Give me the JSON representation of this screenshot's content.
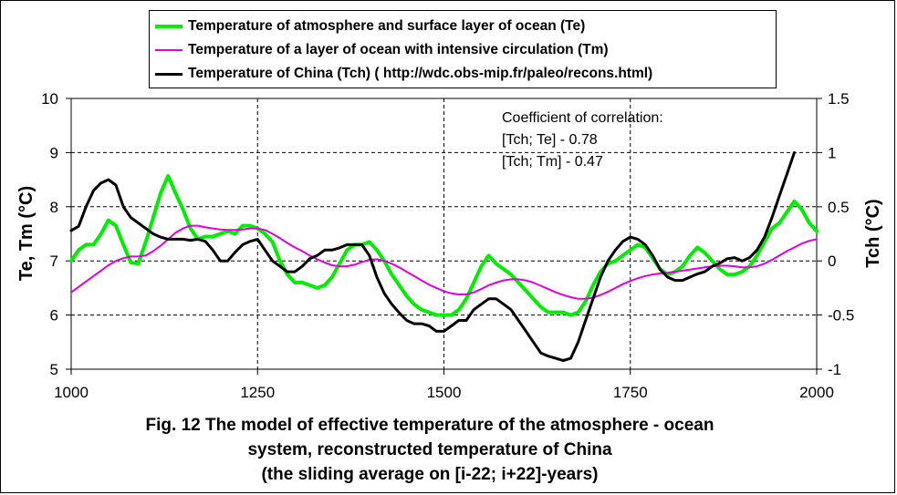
{
  "chart_data": {
    "type": "line",
    "xlabel": "",
    "ylabel": "Te, Tm (°C)",
    "y2label": "Tch (°C)",
    "xlim": [
      1000,
      2000
    ],
    "xticks": [
      "1000",
      "1250",
      "1500",
      "1750",
      "2000"
    ],
    "ylim": [
      5,
      10
    ],
    "yticks": [
      "5",
      "6",
      "7",
      "8",
      "9",
      "10"
    ],
    "y2lim": [
      -1,
      1.5
    ],
    "y2ticks": [
      "-1",
      "-0.5",
      "0",
      "0.5",
      "1",
      "1.5"
    ],
    "grid": "dashed vertical lines at x ticks, dashed horizontal lines at y ticks",
    "legend_position": "top",
    "series": [
      {
        "name": "Temperature of atmosphere and surface layer of ocean (Te)",
        "color": "#00ee00",
        "axis": "left",
        "x": [
          1000,
          1010,
          1020,
          1030,
          1040,
          1050,
          1060,
          1070,
          1080,
          1090,
          1100,
          1110,
          1120,
          1130,
          1140,
          1150,
          1160,
          1170,
          1180,
          1190,
          1200,
          1210,
          1220,
          1230,
          1240,
          1250,
          1260,
          1270,
          1280,
          1290,
          1300,
          1310,
          1320,
          1330,
          1340,
          1350,
          1360,
          1370,
          1380,
          1390,
          1400,
          1410,
          1420,
          1430,
          1440,
          1450,
          1460,
          1470,
          1480,
          1490,
          1500,
          1510,
          1520,
          1530,
          1540,
          1550,
          1560,
          1570,
          1580,
          1590,
          1600,
          1610,
          1620,
          1630,
          1640,
          1650,
          1660,
          1670,
          1680,
          1690,
          1700,
          1710,
          1720,
          1730,
          1740,
          1750,
          1760,
          1770,
          1780,
          1790,
          1800,
          1810,
          1820,
          1830,
          1840,
          1850,
          1860,
          1870,
          1880,
          1890,
          1900,
          1910,
          1920,
          1930,
          1940,
          1950,
          1960,
          1970,
          1980,
          1990,
          2000
        ],
        "values": [
          7.0,
          7.2,
          7.3,
          7.3,
          7.5,
          7.75,
          7.65,
          7.3,
          6.97,
          6.95,
          7.35,
          7.8,
          8.25,
          8.57,
          8.25,
          7.95,
          7.6,
          7.4,
          7.45,
          7.45,
          7.5,
          7.55,
          7.5,
          7.65,
          7.65,
          7.6,
          7.5,
          7.35,
          7.0,
          6.75,
          6.6,
          6.6,
          6.55,
          6.5,
          6.55,
          6.7,
          6.95,
          7.2,
          7.3,
          7.3,
          7.35,
          7.2,
          7.0,
          6.75,
          6.55,
          6.35,
          6.2,
          6.1,
          6.05,
          6.0,
          6.0,
          6.0,
          6.1,
          6.3,
          6.6,
          6.9,
          7.1,
          6.95,
          6.85,
          6.75,
          6.6,
          6.45,
          6.3,
          6.15,
          6.05,
          6.05,
          6.05,
          6.0,
          6.05,
          6.25,
          6.55,
          6.8,
          6.95,
          7.0,
          7.1,
          7.2,
          7.3,
          7.25,
          7.05,
          6.85,
          6.75,
          6.8,
          6.9,
          7.1,
          7.25,
          7.15,
          7.0,
          6.85,
          6.75,
          6.75,
          6.8,
          6.9,
          7.1,
          7.35,
          7.6,
          7.7,
          7.9,
          8.1,
          7.95,
          7.7,
          7.55
        ]
      },
      {
        "name": "Temperature of a layer of ocean with intensive circulation (Tm)",
        "color": "#e000e0",
        "axis": "left",
        "x": [
          1000,
          1010,
          1020,
          1030,
          1040,
          1050,
          1060,
          1070,
          1080,
          1090,
          1100,
          1110,
          1120,
          1130,
          1140,
          1150,
          1160,
          1170,
          1180,
          1190,
          1200,
          1210,
          1220,
          1230,
          1240,
          1250,
          1260,
          1270,
          1280,
          1290,
          1300,
          1310,
          1320,
          1330,
          1340,
          1350,
          1360,
          1370,
          1380,
          1390,
          1400,
          1410,
          1420,
          1430,
          1440,
          1450,
          1460,
          1470,
          1480,
          1490,
          1500,
          1510,
          1520,
          1530,
          1540,
          1550,
          1560,
          1570,
          1580,
          1590,
          1600,
          1610,
          1620,
          1630,
          1640,
          1650,
          1660,
          1670,
          1680,
          1690,
          1700,
          1710,
          1720,
          1730,
          1740,
          1750,
          1760,
          1770,
          1780,
          1790,
          1800,
          1810,
          1820,
          1830,
          1840,
          1850,
          1860,
          1870,
          1880,
          1890,
          1900,
          1910,
          1920,
          1930,
          1940,
          1950,
          1960,
          1970,
          1980,
          1990,
          2000
        ],
        "values": [
          6.42,
          6.52,
          6.62,
          6.72,
          6.82,
          6.92,
          7.0,
          7.05,
          7.08,
          7.08,
          7.1,
          7.18,
          7.28,
          7.4,
          7.52,
          7.6,
          7.65,
          7.65,
          7.62,
          7.6,
          7.58,
          7.57,
          7.57,
          7.58,
          7.6,
          7.6,
          7.57,
          7.5,
          7.42,
          7.33,
          7.25,
          7.18,
          7.1,
          7.03,
          6.97,
          6.92,
          6.9,
          6.9,
          6.93,
          6.98,
          7.02,
          7.03,
          7.0,
          6.95,
          6.88,
          6.8,
          6.72,
          6.64,
          6.56,
          6.5,
          6.44,
          6.4,
          6.38,
          6.38,
          6.42,
          6.48,
          6.55,
          6.6,
          6.64,
          6.66,
          6.66,
          6.64,
          6.6,
          6.54,
          6.48,
          6.42,
          6.37,
          6.33,
          6.3,
          6.3,
          6.32,
          6.37,
          6.43,
          6.5,
          6.57,
          6.63,
          6.68,
          6.72,
          6.75,
          6.77,
          6.78,
          6.8,
          6.82,
          6.84,
          6.86,
          6.88,
          6.9,
          6.91,
          6.91,
          6.9,
          6.88,
          6.88,
          6.9,
          6.95,
          7.02,
          7.1,
          7.18,
          7.25,
          7.32,
          7.37,
          7.4
        ]
      },
      {
        "name": "Temperature of China (Tch) ( http://wdc.obs-mip.fr/paleo/recons.html)",
        "color": "#000000",
        "axis": "right",
        "x": [
          1000,
          1010,
          1020,
          1030,
          1040,
          1050,
          1060,
          1070,
          1080,
          1090,
          1100,
          1110,
          1120,
          1130,
          1140,
          1150,
          1160,
          1170,
          1180,
          1190,
          1200,
          1210,
          1220,
          1230,
          1240,
          1250,
          1260,
          1270,
          1280,
          1290,
          1300,
          1310,
          1320,
          1330,
          1340,
          1350,
          1360,
          1370,
          1380,
          1390,
          1400,
          1410,
          1420,
          1430,
          1440,
          1450,
          1460,
          1470,
          1480,
          1490,
          1500,
          1510,
          1520,
          1530,
          1540,
          1550,
          1560,
          1570,
          1580,
          1590,
          1600,
          1610,
          1620,
          1630,
          1640,
          1650,
          1660,
          1670,
          1680,
          1690,
          1700,
          1710,
          1720,
          1730,
          1740,
          1750,
          1760,
          1770,
          1780,
          1790,
          1800,
          1810,
          1820,
          1830,
          1840,
          1850,
          1860,
          1870,
          1880,
          1890,
          1900,
          1910,
          1920,
          1930,
          1940,
          1950,
          1960,
          1970
        ],
        "values": [
          0.28,
          0.32,
          0.5,
          0.65,
          0.72,
          0.75,
          0.7,
          0.5,
          0.4,
          0.35,
          0.3,
          0.25,
          0.22,
          0.2,
          0.2,
          0.2,
          0.19,
          0.2,
          0.18,
          0.1,
          0.0,
          0.0,
          0.08,
          0.15,
          0.18,
          0.2,
          0.1,
          0.0,
          -0.05,
          -0.1,
          -0.1,
          -0.05,
          0.02,
          0.05,
          0.1,
          0.1,
          0.12,
          0.15,
          0.15,
          0.15,
          0.05,
          -0.15,
          -0.3,
          -0.4,
          -0.48,
          -0.55,
          -0.58,
          -0.58,
          -0.6,
          -0.65,
          -0.65,
          -0.6,
          -0.55,
          -0.55,
          -0.45,
          -0.4,
          -0.35,
          -0.35,
          -0.4,
          -0.45,
          -0.55,
          -0.65,
          -0.75,
          -0.85,
          -0.88,
          -0.9,
          -0.92,
          -0.9,
          -0.75,
          -0.55,
          -0.35,
          -0.15,
          0.0,
          0.1,
          0.18,
          0.22,
          0.2,
          0.15,
          0.05,
          -0.08,
          -0.15,
          -0.18,
          -0.18,
          -0.15,
          -0.12,
          -0.1,
          -0.05,
          -0.02,
          0.02,
          0.03,
          0.0,
          0.03,
          0.1,
          0.22,
          0.4,
          0.6,
          0.8,
          1.0
        ]
      }
    ]
  },
  "annotation": {
    "title": "Coefficient of correlation:",
    "line1": "[Tch; Te] - 0.78",
    "line2": "[Tch; Tm] - 0.47"
  },
  "caption": {
    "line1": "Fig. 12 The model of effective temperature of the atmosphere - ocean",
    "line2": "system, reconstructed temperature of China",
    "line3": "(the sliding average on [i-22; i+22]-years)"
  }
}
